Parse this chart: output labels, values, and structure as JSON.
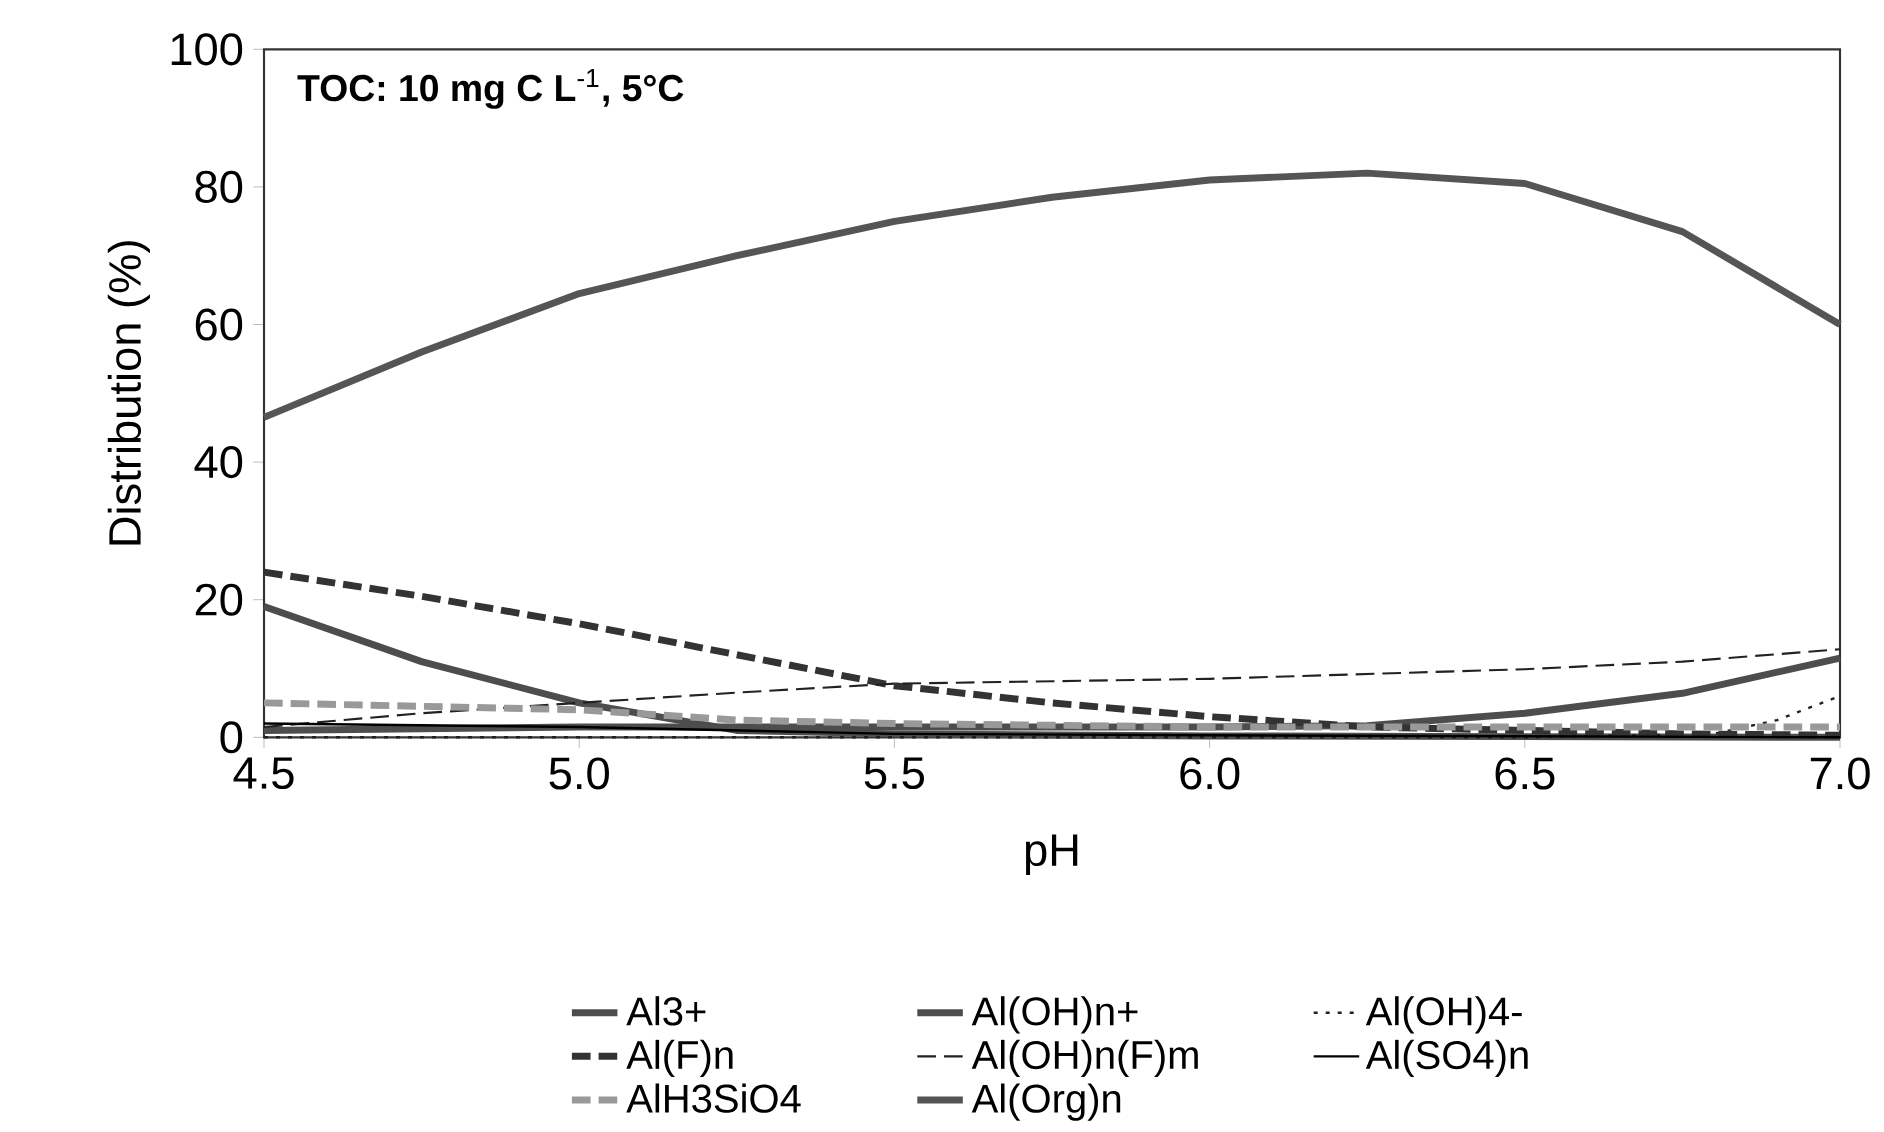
{
  "chart_data": {
    "type": "line",
    "xlabel": "pH",
    "ylabel": "Distribution (%)",
    "annotations": [
      "**TOC: 10 mg C L**$^{-1}$**, 5°C**"
    ],
    "xlim": [
      4.5,
      7.0
    ],
    "ylim": [
      0,
      100
    ],
    "xticks": [
      4.5,
      {
        "value": 5.0,
        "label": "5.0"
      },
      5.5,
      {
        "value": 6.0,
        "label": "6.0"
      },
      6.5,
      {
        "value": 7.0,
        "label": "7.0"
      }
    ],
    "yticks": [
      0,
      20,
      40,
      60,
      80,
      100
    ],
    "legend": "bottom",
    "grid": false,
    "marker": "none",
    "series": [
      {
        "name": "Al3+",
        "color": "#4d4d4d",
        "line_style": "solid",
        "x": [
          4.5,
          4.75,
          5.0,
          5.25,
          5.5,
          6.0,
          6.5,
          7.0
        ],
        "values": [
          19,
          11,
          5,
          1,
          0.5,
          0.2,
          0.1,
          0
        ]
      },
      {
        "name": "Al(OH)n+",
        "color": "#4d4d4d",
        "line_style": "solid",
        "x": [
          4.5,
          5.0,
          5.5,
          6.0,
          6.25,
          6.5,
          6.75,
          7.0
        ],
        "values": [
          1,
          1.5,
          1.5,
          1.5,
          1.7,
          3.5,
          6.4,
          11.5
        ]
      },
      {
        "name": "Al(OH)4-",
        "color": "#222222",
        "line_style": "dotted",
        "x": [
          4.5,
          5.5,
          6.5,
          6.8,
          6.9,
          7.0
        ],
        "values": [
          0,
          0,
          0,
          0.5,
          2.5,
          6
        ]
      },
      {
        "name": "Al(F)n",
        "color": "#333333",
        "line_style": "dashed",
        "x": [
          4.5,
          4.75,
          5.0,
          5.25,
          5.5,
          5.75,
          6.0,
          6.25,
          6.5,
          6.75,
          7.0
        ],
        "values": [
          24,
          20.5,
          16.5,
          12,
          7.5,
          5,
          3,
          1.5,
          1,
          0.5,
          0.3
        ]
      },
      {
        "name": "Al(OH)n(F)m",
        "color": "#222222",
        "line_style": "dashed",
        "x": [
          4.5,
          4.75,
          5.0,
          5.25,
          5.5,
          6.0,
          6.5,
          6.75,
          7.0
        ],
        "values": [
          1.5,
          3.5,
          5,
          6.5,
          7.8,
          8.5,
          9.9,
          11,
          12.8
        ]
      },
      {
        "name": "Al(SO4)n",
        "color": "#000000",
        "line_style": "solid",
        "x": [
          4.5,
          5.0,
          5.5,
          6.0,
          7.0
        ],
        "values": [
          2,
          1.5,
          0.5,
          0.3,
          0
        ]
      },
      {
        "name": "AlH3SiO4",
        "color": "#999999",
        "line_style": "dashed",
        "x": [
          4.5,
          5.0,
          5.25,
          5.5,
          6.0,
          6.5,
          7.0
        ],
        "values": [
          5,
          4,
          2.5,
          2,
          1.5,
          1.5,
          1.5
        ]
      },
      {
        "name": "Al(Org)n",
        "color": "#555555",
        "line_style": "solid",
        "x": [
          4.5,
          4.75,
          5.0,
          5.25,
          5.5,
          5.75,
          6.0,
          6.25,
          6.5,
          6.75,
          7.0
        ],
        "values": [
          46.5,
          56,
          64.5,
          70,
          75,
          78.5,
          81,
          82,
          80.5,
          73.5,
          60
        ]
      }
    ]
  }
}
